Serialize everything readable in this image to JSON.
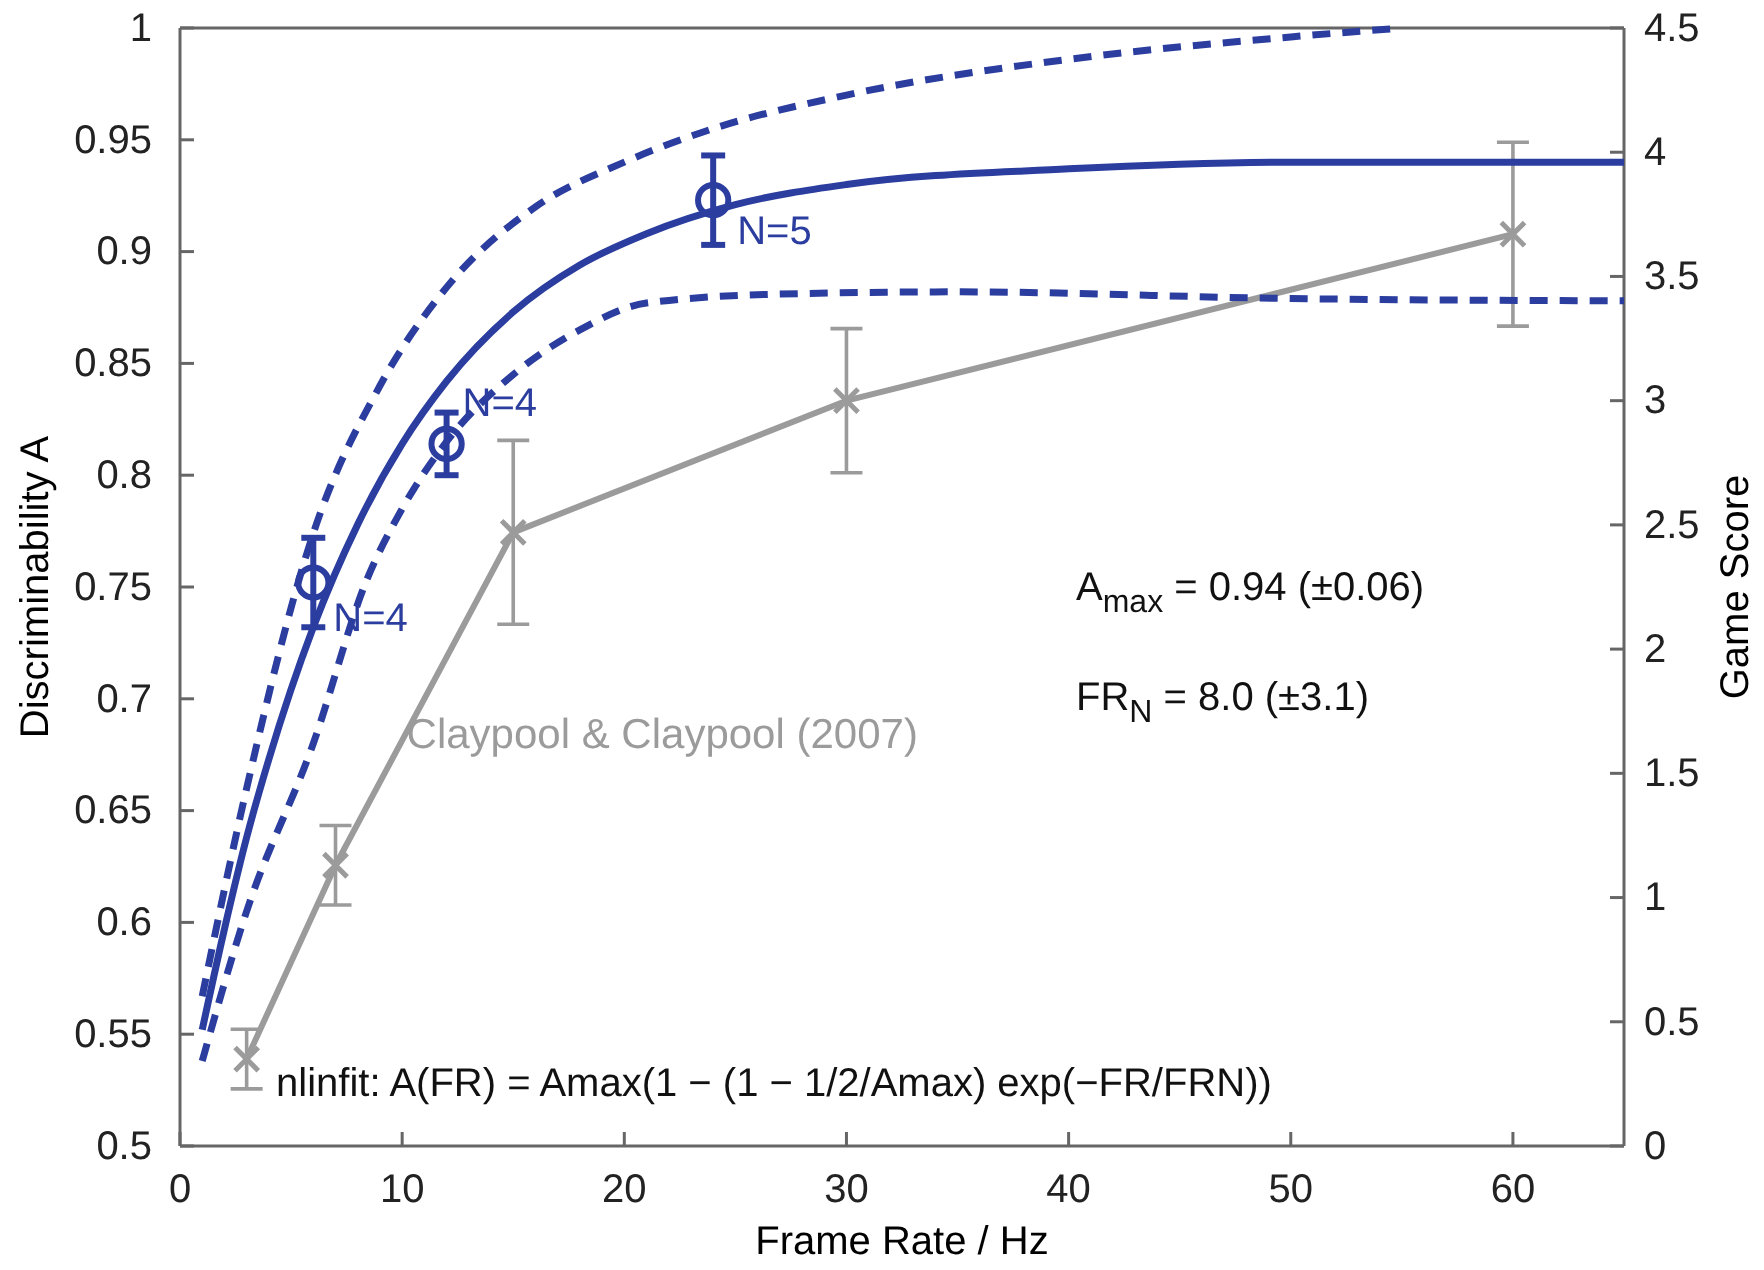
{
  "chart_data": {
    "type": "line",
    "xlabel": "Frame Rate / Hz",
    "ylabel": "Discriminability A",
    "y2label": "Game Score",
    "xlim": [
      0,
      65
    ],
    "xticks": [
      0,
      10,
      20,
      30,
      40,
      50,
      60
    ],
    "ylim": [
      0.5,
      1
    ],
    "yticks": [
      0.5,
      0.55,
      0.6,
      0.65,
      0.7,
      0.75,
      0.8,
      0.85,
      0.9,
      0.95,
      1
    ],
    "y2lim": [
      0,
      4.5
    ],
    "y2ticks": [
      0,
      0.5,
      1,
      1.5,
      2,
      2.5,
      3,
      3.5,
      4,
      4.5
    ],
    "grid": false,
    "series": [
      {
        "color": "#2b3d9f",
        "line_style": "solid",
        "marker": "none",
        "x": [
          1,
          2,
          3,
          4,
          6,
          8,
          10,
          12,
          15,
          18,
          21,
          25,
          30,
          40,
          50,
          65
        ],
        "values": [
          0.552,
          0.597,
          0.638,
          0.673,
          0.732,
          0.778,
          0.814,
          0.842,
          0.873,
          0.894,
          0.908,
          0.921,
          0.93,
          0.937,
          0.94,
          0.94
        ]
      },
      {
        "color": "#2b3d9f",
        "line_style": "dashed",
        "marker": "none",
        "x": [
          1,
          3,
          6,
          9,
          12,
          16,
          20,
          24,
          30,
          40,
          50,
          55
        ],
        "values": [
          0.567,
          0.66,
          0.774,
          0.84,
          0.884,
          0.92,
          0.94,
          0.955,
          0.97,
          0.986,
          0.996,
          1.0
        ]
      },
      {
        "color": "#2b3d9f",
        "line_style": "dashed",
        "marker": "none",
        "x": [
          1,
          3,
          6,
          8.4,
          10,
          12,
          15,
          18,
          21,
          27,
          35,
          50,
          65
        ],
        "values": [
          0.538,
          0.605,
          0.68,
          0.753,
          0.785,
          0.815,
          0.845,
          0.865,
          0.877,
          0.881,
          0.882,
          0.879,
          0.878
        ]
      },
      {
        "type": "scatter",
        "color": "#2b3d9f",
        "marker": "circle",
        "x": [
          6,
          12,
          24
        ],
        "values": [
          0.752,
          0.814,
          0.923
        ],
        "errors": [
          0.02,
          0.014,
          0.02
        ]
      },
      {
        "name": "Claypool & Claypool (2007)",
        "axis": "y2",
        "color": "#9b9b9b",
        "line_style": "solid",
        "marker": "cross",
        "x": [
          3,
          7,
          15,
          30,
          60
        ],
        "values": [
          0.35,
          1.13,
          2.47,
          3.0,
          3.67
        ],
        "errors": [
          0.12,
          0.16,
          0.37,
          0.29,
          0.37
        ]
      }
    ],
    "annotations": [
      {
        "text": "N=4",
        "x": 6,
        "y": 0.752
      },
      {
        "text": "N=4",
        "x": 12,
        "y": 0.814
      },
      {
        "text": "N=5",
        "x": 24,
        "y": 0.923
      },
      "A$_{max}$ = 0.94 (±0.06)",
      "FR$_{N}$ = 8.0 (±3.1)",
      "nlinfit: A(FR) = Amax(1 − (1 − 1/2/Amax) exp(−FR/FRN))"
    ]
  }
}
